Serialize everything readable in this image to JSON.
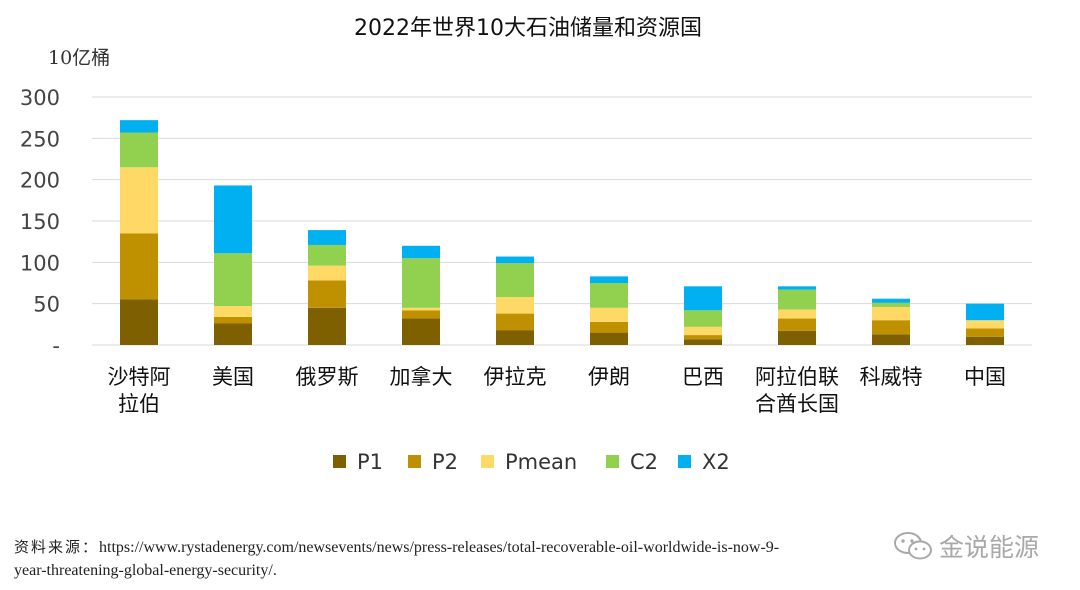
{
  "chart_data": {
    "type": "bar",
    "stacked": true,
    "title": "2022年世界10大石油储量和资源国",
    "ylabel": "10亿桶",
    "ylim": [
      0,
      300
    ],
    "yticks": [
      "-",
      "50",
      "100",
      "150",
      "200",
      "250",
      "300"
    ],
    "grid": true,
    "legend_position": "bottom",
    "categories": [
      "沙特阿拉伯",
      "美国",
      "俄罗斯",
      "加拿大",
      "伊拉克",
      "伊朗",
      "巴西",
      "阿拉伯联合酋长国",
      "科威特",
      "中国"
    ],
    "category_lines": [
      [
        "沙特阿",
        "拉伯"
      ],
      [
        "美国"
      ],
      [
        "俄罗斯"
      ],
      [
        "加拿大"
      ],
      [
        "伊拉克"
      ],
      [
        "伊朗"
      ],
      [
        "巴西"
      ],
      [
        "阿拉伯联",
        "合酋长国"
      ],
      [
        "科威特"
      ],
      [
        "中国"
      ]
    ],
    "series": [
      {
        "name": "P1",
        "color": "#7f6000",
        "values": [
          55,
          26,
          45,
          32,
          18,
          15,
          7,
          17,
          13,
          10
        ]
      },
      {
        "name": "P2",
        "color": "#bf9000",
        "values": [
          80,
          8,
          33,
          10,
          20,
          13,
          5,
          15,
          17,
          10
        ]
      },
      {
        "name": "Pmean",
        "color": "#ffd966",
        "values": [
          80,
          13,
          18,
          3,
          20,
          17,
          10,
          11,
          16,
          10
        ]
      },
      {
        "name": "C2",
        "color": "#92d050",
        "values": [
          42,
          64,
          25,
          60,
          41,
          30,
          20,
          24,
          5,
          0
        ]
      },
      {
        "name": "X2",
        "color": "#00b0f0",
        "values": [
          15,
          82,
          18,
          15,
          8,
          8,
          29,
          4,
          5,
          20
        ]
      }
    ]
  },
  "source": {
    "label": "资料来源：",
    "line1": "https://www.rystadenergy.com/newsevents/news/press-releases/total-recoverable-oil-worldwide-is-now-9-",
    "line2": "year-threatening-global-energy-security/."
  },
  "watermark": {
    "text": "金说能源",
    "icon": "wechat-icon"
  }
}
